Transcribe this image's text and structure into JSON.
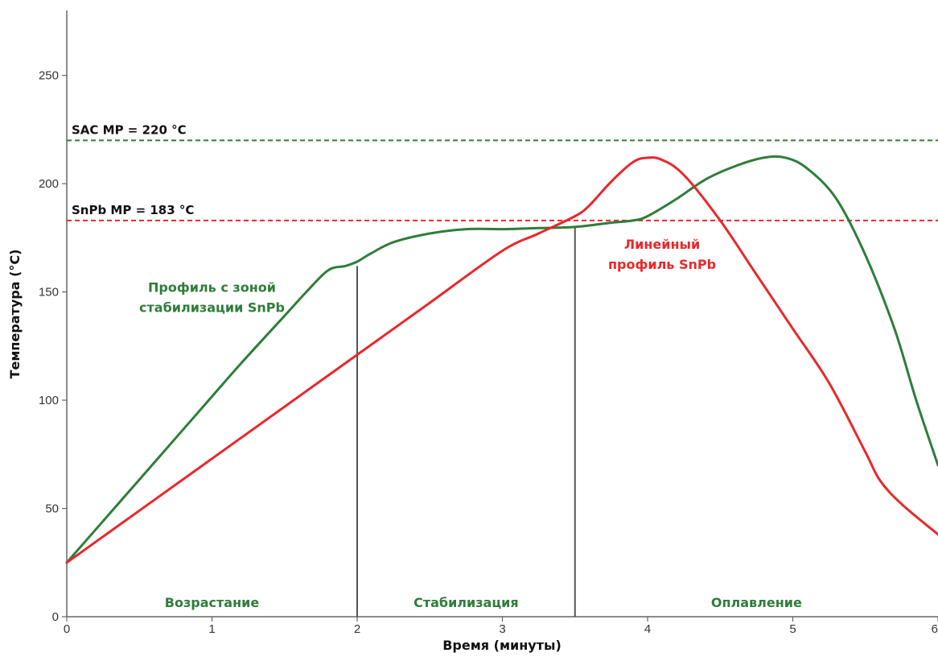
{
  "chart_data": {
    "type": "line",
    "xlabel": "Время (минуты)",
    "ylabel": "Температура (°C)",
    "xlim": [
      0,
      6
    ],
    "ylim": [
      0,
      280
    ],
    "x_ticks": [
      0,
      1,
      2,
      3,
      4,
      5,
      6
    ],
    "x_tick_labels": [
      "0",
      "1",
      "2",
      "3",
      "4",
      "5",
      "6"
    ],
    "y_ticks": [
      0,
      50,
      100,
      150,
      200,
      250
    ],
    "y_tick_labels": [
      "0",
      "50",
      "100",
      "150",
      "200",
      "250"
    ],
    "grid": false,
    "colors": {
      "green": "#2e7d3a",
      "red": "#e8282b",
      "axis": "#666666",
      "divider": "#555555"
    },
    "series": [
      {
        "key": "soak",
        "color": "#2e7d3a",
        "points": [
          [
            0,
            25
          ],
          [
            0.3,
            48
          ],
          [
            0.6,
            71
          ],
          [
            0.9,
            94
          ],
          [
            1.2,
            117
          ],
          [
            1.5,
            139
          ],
          [
            1.65,
            150
          ],
          [
            1.8,
            160
          ],
          [
            1.92,
            162
          ],
          [
            2.0,
            164
          ],
          [
            2.1,
            168
          ],
          [
            2.25,
            173
          ],
          [
            2.5,
            177
          ],
          [
            2.75,
            179
          ],
          [
            3.0,
            179
          ],
          [
            3.25,
            179.5
          ],
          [
            3.5,
            180
          ],
          [
            3.75,
            182
          ],
          [
            3.9,
            183
          ],
          [
            4.0,
            185
          ],
          [
            4.2,
            193
          ],
          [
            4.4,
            202
          ],
          [
            4.6,
            208
          ],
          [
            4.8,
            212
          ],
          [
            4.95,
            212
          ],
          [
            5.1,
            207
          ],
          [
            5.3,
            193
          ],
          [
            5.5,
            167
          ],
          [
            5.7,
            133
          ],
          [
            5.85,
            100
          ],
          [
            6.0,
            70
          ]
        ]
      },
      {
        "key": "linear",
        "color": "#e8282b",
        "points": [
          [
            0,
            25
          ],
          [
            0.5,
            49
          ],
          [
            1.0,
            73
          ],
          [
            1.5,
            97
          ],
          [
            2.0,
            121
          ],
          [
            2.5,
            145
          ],
          [
            3.0,
            169
          ],
          [
            3.25,
            177
          ],
          [
            3.5,
            185
          ],
          [
            3.6,
            190
          ],
          [
            3.75,
            201
          ],
          [
            3.9,
            210
          ],
          [
            4.0,
            212
          ],
          [
            4.1,
            211
          ],
          [
            4.25,
            204
          ],
          [
            4.5,
            183
          ],
          [
            4.75,
            158
          ],
          [
            5.0,
            133
          ],
          [
            5.25,
            108
          ],
          [
            5.5,
            76
          ],
          [
            5.6,
            63
          ],
          [
            5.75,
            52
          ],
          [
            6.0,
            38
          ]
        ]
      }
    ],
    "reference_lines": [
      {
        "y": 220,
        "color": "#2e7d3a",
        "label": "SAC MP = 220 °C"
      },
      {
        "y": 183,
        "color": "#e8282b",
        "label": "SnPb MP = 183 °C"
      }
    ],
    "dividers": [
      {
        "x": 2.0,
        "y_top": 162
      },
      {
        "x": 3.5,
        "y_top": 180
      }
    ],
    "zones": [
      {
        "x_center": 1.0,
        "label": "Возрастание"
      },
      {
        "x_center": 2.75,
        "label": "Стабилизация"
      },
      {
        "x_center": 4.75,
        "label": "Оплавление"
      }
    ],
    "annotations": [
      {
        "key": "soak",
        "lines": [
          "Профиль с зоной",
          "стабилизации SnPb"
        ],
        "color": "#2e7d3a",
        "x": 1.0,
        "y": 150
      },
      {
        "key": "linear",
        "lines": [
          "Линейный",
          "профиль SnPb"
        ],
        "color": "#e8282b",
        "x": 4.1,
        "y": 170
      }
    ]
  }
}
